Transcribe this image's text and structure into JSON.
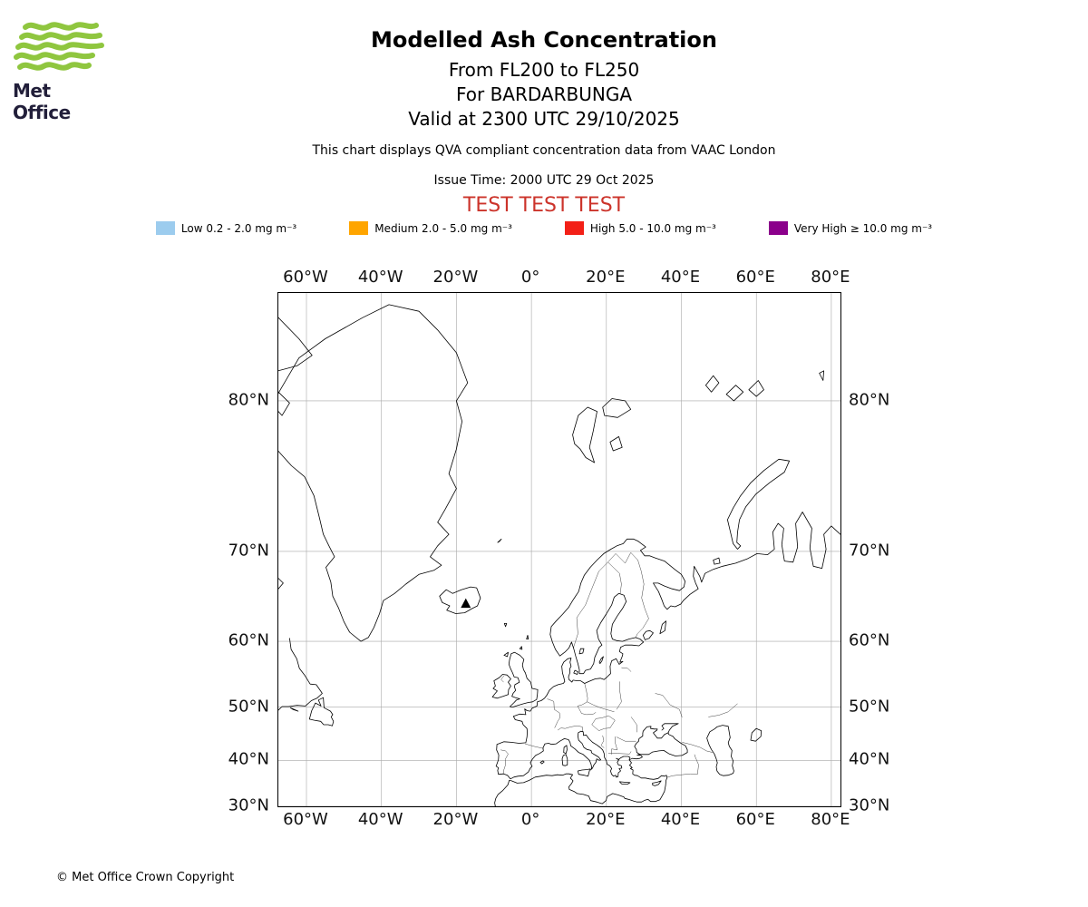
{
  "logo": {
    "text": "Met Office",
    "green": "#8fc63f",
    "text_color": "#221f3a"
  },
  "title": {
    "line1": "Modelled Ash Concentration",
    "line2": "From FL200 to FL250",
    "line3": "For BARDARBUNGA",
    "line4": "Valid at 2300 UTC 29/10/2025"
  },
  "note": "This chart displays QVA compliant concentration data from VAAC London",
  "issue_time": "Issue Time: 2000 UTC 29 Oct 2025",
  "test_banner": {
    "text": "TEST TEST TEST",
    "color": "#cc342b"
  },
  "legend": {
    "items": [
      {
        "name": "Low",
        "label": "Low 0.2 - 2.0 mg m⁻³",
        "color": "#9cccee"
      },
      {
        "name": "Medium",
        "label": "Medium 2.0 - 5.0 mg m⁻³",
        "color": "#ffa500"
      },
      {
        "name": "High",
        "label": "High 5.0 - 10.0 mg m⁻³",
        "color": "#f32017"
      },
      {
        "name": "Very High",
        "label": "Very High  ≥  10.0 mg m⁻³",
        "color": "#8b008b"
      }
    ]
  },
  "map": {
    "projection": "mercator",
    "lon_ticks": [
      {
        "value": -60,
        "label": "60°W"
      },
      {
        "value": -40,
        "label": "40°W"
      },
      {
        "value": -20,
        "label": "20°W"
      },
      {
        "value": 0,
        "label": "0°"
      },
      {
        "value": 20,
        "label": "20°E"
      },
      {
        "value": 40,
        "label": "40°E"
      },
      {
        "value": 60,
        "label": "60°E"
      },
      {
        "value": 80,
        "label": "80°E"
      }
    ],
    "lat_ticks": [
      {
        "value": 80,
        "label": "80°N"
      },
      {
        "value": 70,
        "label": "70°N"
      },
      {
        "value": 60,
        "label": "60°N"
      },
      {
        "value": 50,
        "label": "50°N"
      },
      {
        "value": 40,
        "label": "40°N"
      },
      {
        "value": 30,
        "label": "30°N"
      }
    ],
    "volcano": {
      "name": "BARDARBUNGA",
      "lon": -17.5,
      "lat": 64.6
    }
  },
  "footer": "© Met Office Crown Copyright"
}
